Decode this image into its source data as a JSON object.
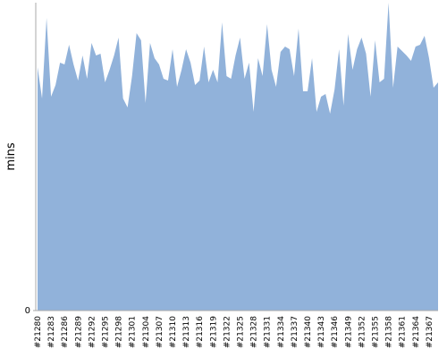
{
  "chart_data": {
    "type": "area",
    "y_label": "mins",
    "color": "#91b2da",
    "categories": [
      "#21280",
      null,
      null,
      "#21283",
      null,
      null,
      "#21286",
      null,
      null,
      "#21289",
      null,
      null,
      "#21292",
      null,
      null,
      "#21295",
      null,
      null,
      "#21298",
      null,
      null,
      "#21301",
      null,
      null,
      "#21304",
      null,
      null,
      "#21307",
      null,
      null,
      "#21310",
      null,
      null,
      "#21313",
      null,
      null,
      "#21316",
      null,
      null,
      "#21319",
      null,
      null,
      "#21322",
      null,
      null,
      "#21325",
      null,
      null,
      "#21328",
      null,
      null,
      "#21331",
      null,
      null,
      "#21334",
      null,
      null,
      "#21337",
      null,
      null,
      "#21340",
      null,
      null,
      "#21343",
      null,
      null,
      "#21346",
      null,
      null,
      "#21349",
      null,
      null,
      "#21352",
      null,
      null,
      "#21355",
      null,
      null,
      "#21358",
      null,
      null,
      "#21361",
      null,
      null,
      "#21364",
      null,
      null,
      "#21367",
      null,
      null
    ],
    "values": [
      272,
      237,
      327,
      239,
      252,
      277,
      275,
      297,
      275,
      257,
      285,
      259,
      299,
      285,
      287,
      255,
      269,
      285,
      305,
      237,
      227,
      262,
      310,
      302,
      232,
      299,
      282,
      275,
      259,
      257,
      292,
      250,
      269,
      292,
      277,
      252,
      257,
      295,
      255,
      269,
      255,
      322,
      262,
      259,
      285,
      305,
      259,
      277,
      222,
      282,
      262,
      320,
      269,
      250,
      289,
      295,
      292,
      262,
      315,
      245,
      245,
      282,
      222,
      239,
      242,
      220,
      247,
      292,
      229,
      309,
      269,
      292,
      305,
      287,
      239,
      302,
      255,
      259,
      344,
      249,
      295,
      290,
      285,
      279,
      295,
      297,
      307,
      282,
      249,
      255
    ],
    "ylim": [
      0,
      344
    ],
    "yticks": [
      0
    ]
  }
}
